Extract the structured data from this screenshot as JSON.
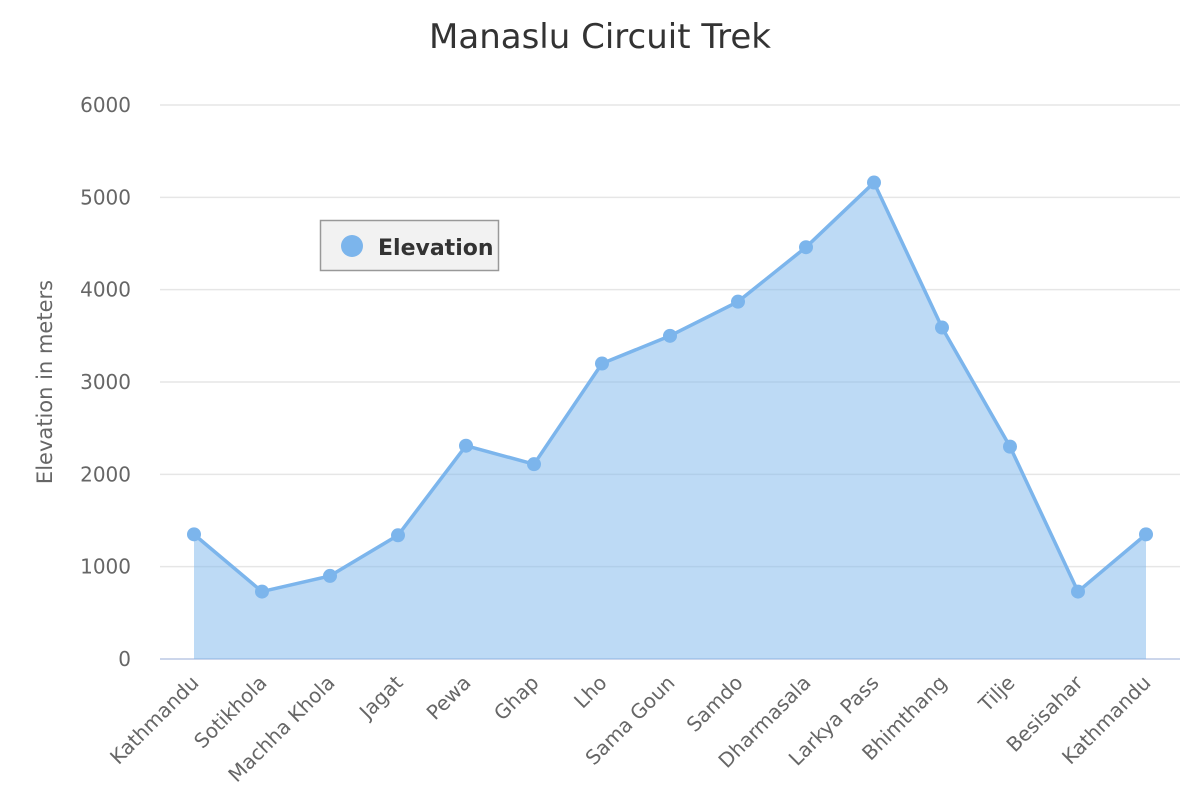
{
  "chart_data": {
    "type": "area",
    "title": "Manaslu Circuit Trek",
    "xlabel": "",
    "ylabel": "Elevation in meters",
    "ylim": [
      0,
      6000
    ],
    "yticks": [
      0,
      1000,
      2000,
      3000,
      4000,
      5000,
      6000
    ],
    "grid": true,
    "legend_position": "top-left",
    "categories": [
      "Kathmandu",
      "Sotikhola",
      "Machha Khola",
      "Jagat",
      "Pewa",
      "Ghap",
      "Lho",
      "Sama Goun",
      "Samdo",
      "Dharmasala",
      "Larkya Pass",
      "Bhimthang",
      "Tilje",
      "Besisahar",
      "Kathmandu"
    ],
    "series": [
      {
        "name": "Elevation",
        "color": "#7cb5ec",
        "values": [
          1350,
          730,
          900,
          1340,
          2310,
          2110,
          3200,
          3500,
          3870,
          4460,
          5160,
          3590,
          2300,
          730,
          1350
        ]
      }
    ]
  }
}
